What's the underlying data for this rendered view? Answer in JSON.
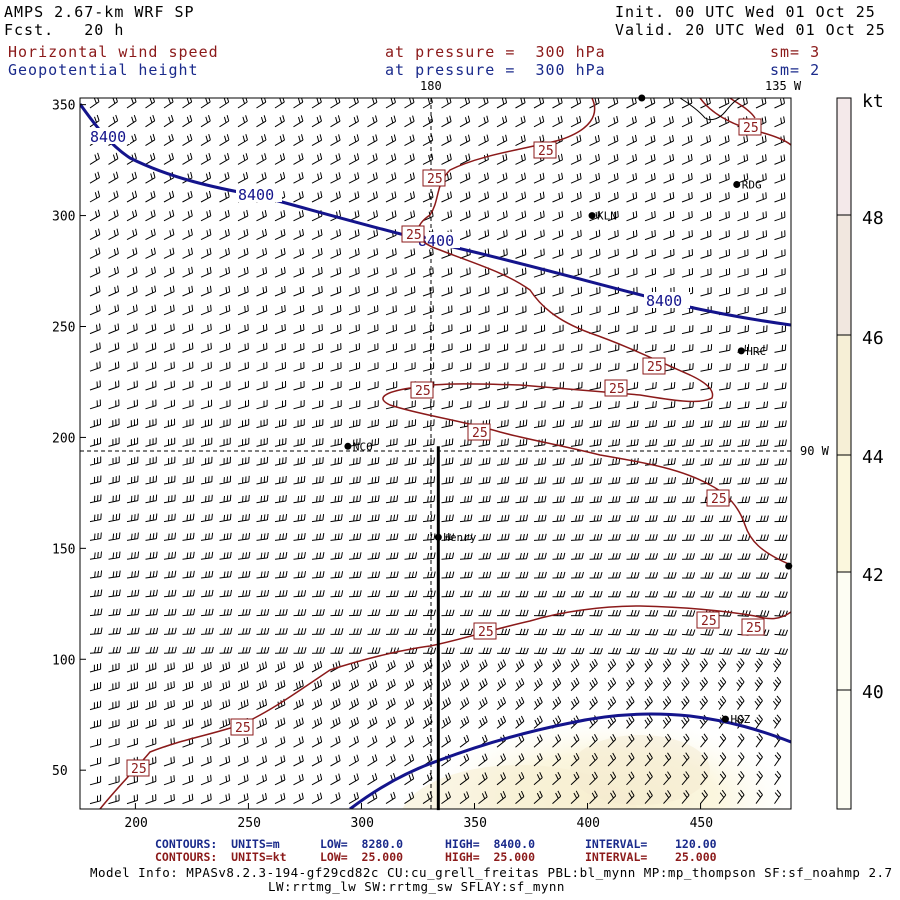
{
  "header": {
    "title": "AMPS 2.67-km WRF SP",
    "forecast": "Fcst.   20 h",
    "init": "Init. 00 UTC Wed 01 Oct 25",
    "valid": "Valid. 20 UTC Wed 01 Oct 25",
    "field1": "Horizontal wind speed",
    "field1_level": "at pressure =  300 hPa",
    "field1_sm": "sm= 3",
    "field2": "Geopotential height",
    "field2_level": "at pressure =  300 hPa",
    "field2_sm": "sm= 2"
  },
  "map": {
    "x_ticks": [
      "200",
      "250",
      "300",
      "350",
      "400",
      "450"
    ],
    "y_ticks": [
      "50",
      "100",
      "150",
      "200",
      "250",
      "300",
      "350"
    ],
    "lon_label_180": "180",
    "lon_label_135w": "135 W",
    "lon_label_90w": "90 W",
    "height_labels": [
      "8400",
      "8400",
      "8400",
      "8400"
    ],
    "speed_labels": [
      "25",
      "25",
      "25",
      "25",
      "25",
      "25",
      "25",
      "25",
      "25",
      "25",
      "25",
      "25",
      "25",
      "25"
    ],
    "stations": [
      {
        "name": "",
        "x": 424,
        "y": 353
      },
      {
        "name": "KLN",
        "x": 402,
        "y": 300
      },
      {
        "name": "RDG",
        "x": 466,
        "y": 314
      },
      {
        "name": "HRC",
        "x": 468,
        "y": 239
      },
      {
        "name": "NCO",
        "x": 294,
        "y": 196
      },
      {
        "name": "Henry",
        "x": 334,
        "y": 155
      },
      {
        "name": "",
        "x": 489,
        "y": 142
      },
      {
        "name": "HGZ",
        "x": 461,
        "y": 73
      }
    ],
    "cross_section_line": {
      "x": 334,
      "y_from": 32,
      "y_to": 196
    }
  },
  "colorbar": {
    "unit": "kt",
    "labels": [
      "48",
      "46",
      "44",
      "42",
      "40"
    ],
    "colors": [
      "#f4e9ea",
      "#f1e7df",
      "#f6efd6",
      "#fbf7dd",
      "#fdfdf3"
    ]
  },
  "footer": {
    "contours1_key": "CONTOURS:  UNITS=m",
    "contours1_low": "LOW=  8280.0",
    "contours1_high": "HIGH=  8400.0",
    "contours1_interval": "INTERVAL=    120.00",
    "contours2_key": "CONTOURS:  UNITS=kt",
    "contours2_low": "LOW=  25.000",
    "contours2_high": "HIGH=  25.000",
    "contours2_interval": "INTERVAL=    25.000",
    "model_info": "Model Info: MPASv8.2.3-194-gf29cd82c CU:cu_grell_freitas PBL:bl_mynn MP:mp_thompson SF:sf_noahmp 2.7",
    "model_info2": "LW:rrtmg_lw SW:rrtmg_sw SFLAY:sf_mynn"
  },
  "colors": {
    "height_contour": "#14148c",
    "speed_contour": "#8b1a1a",
    "barb": "#000000"
  }
}
